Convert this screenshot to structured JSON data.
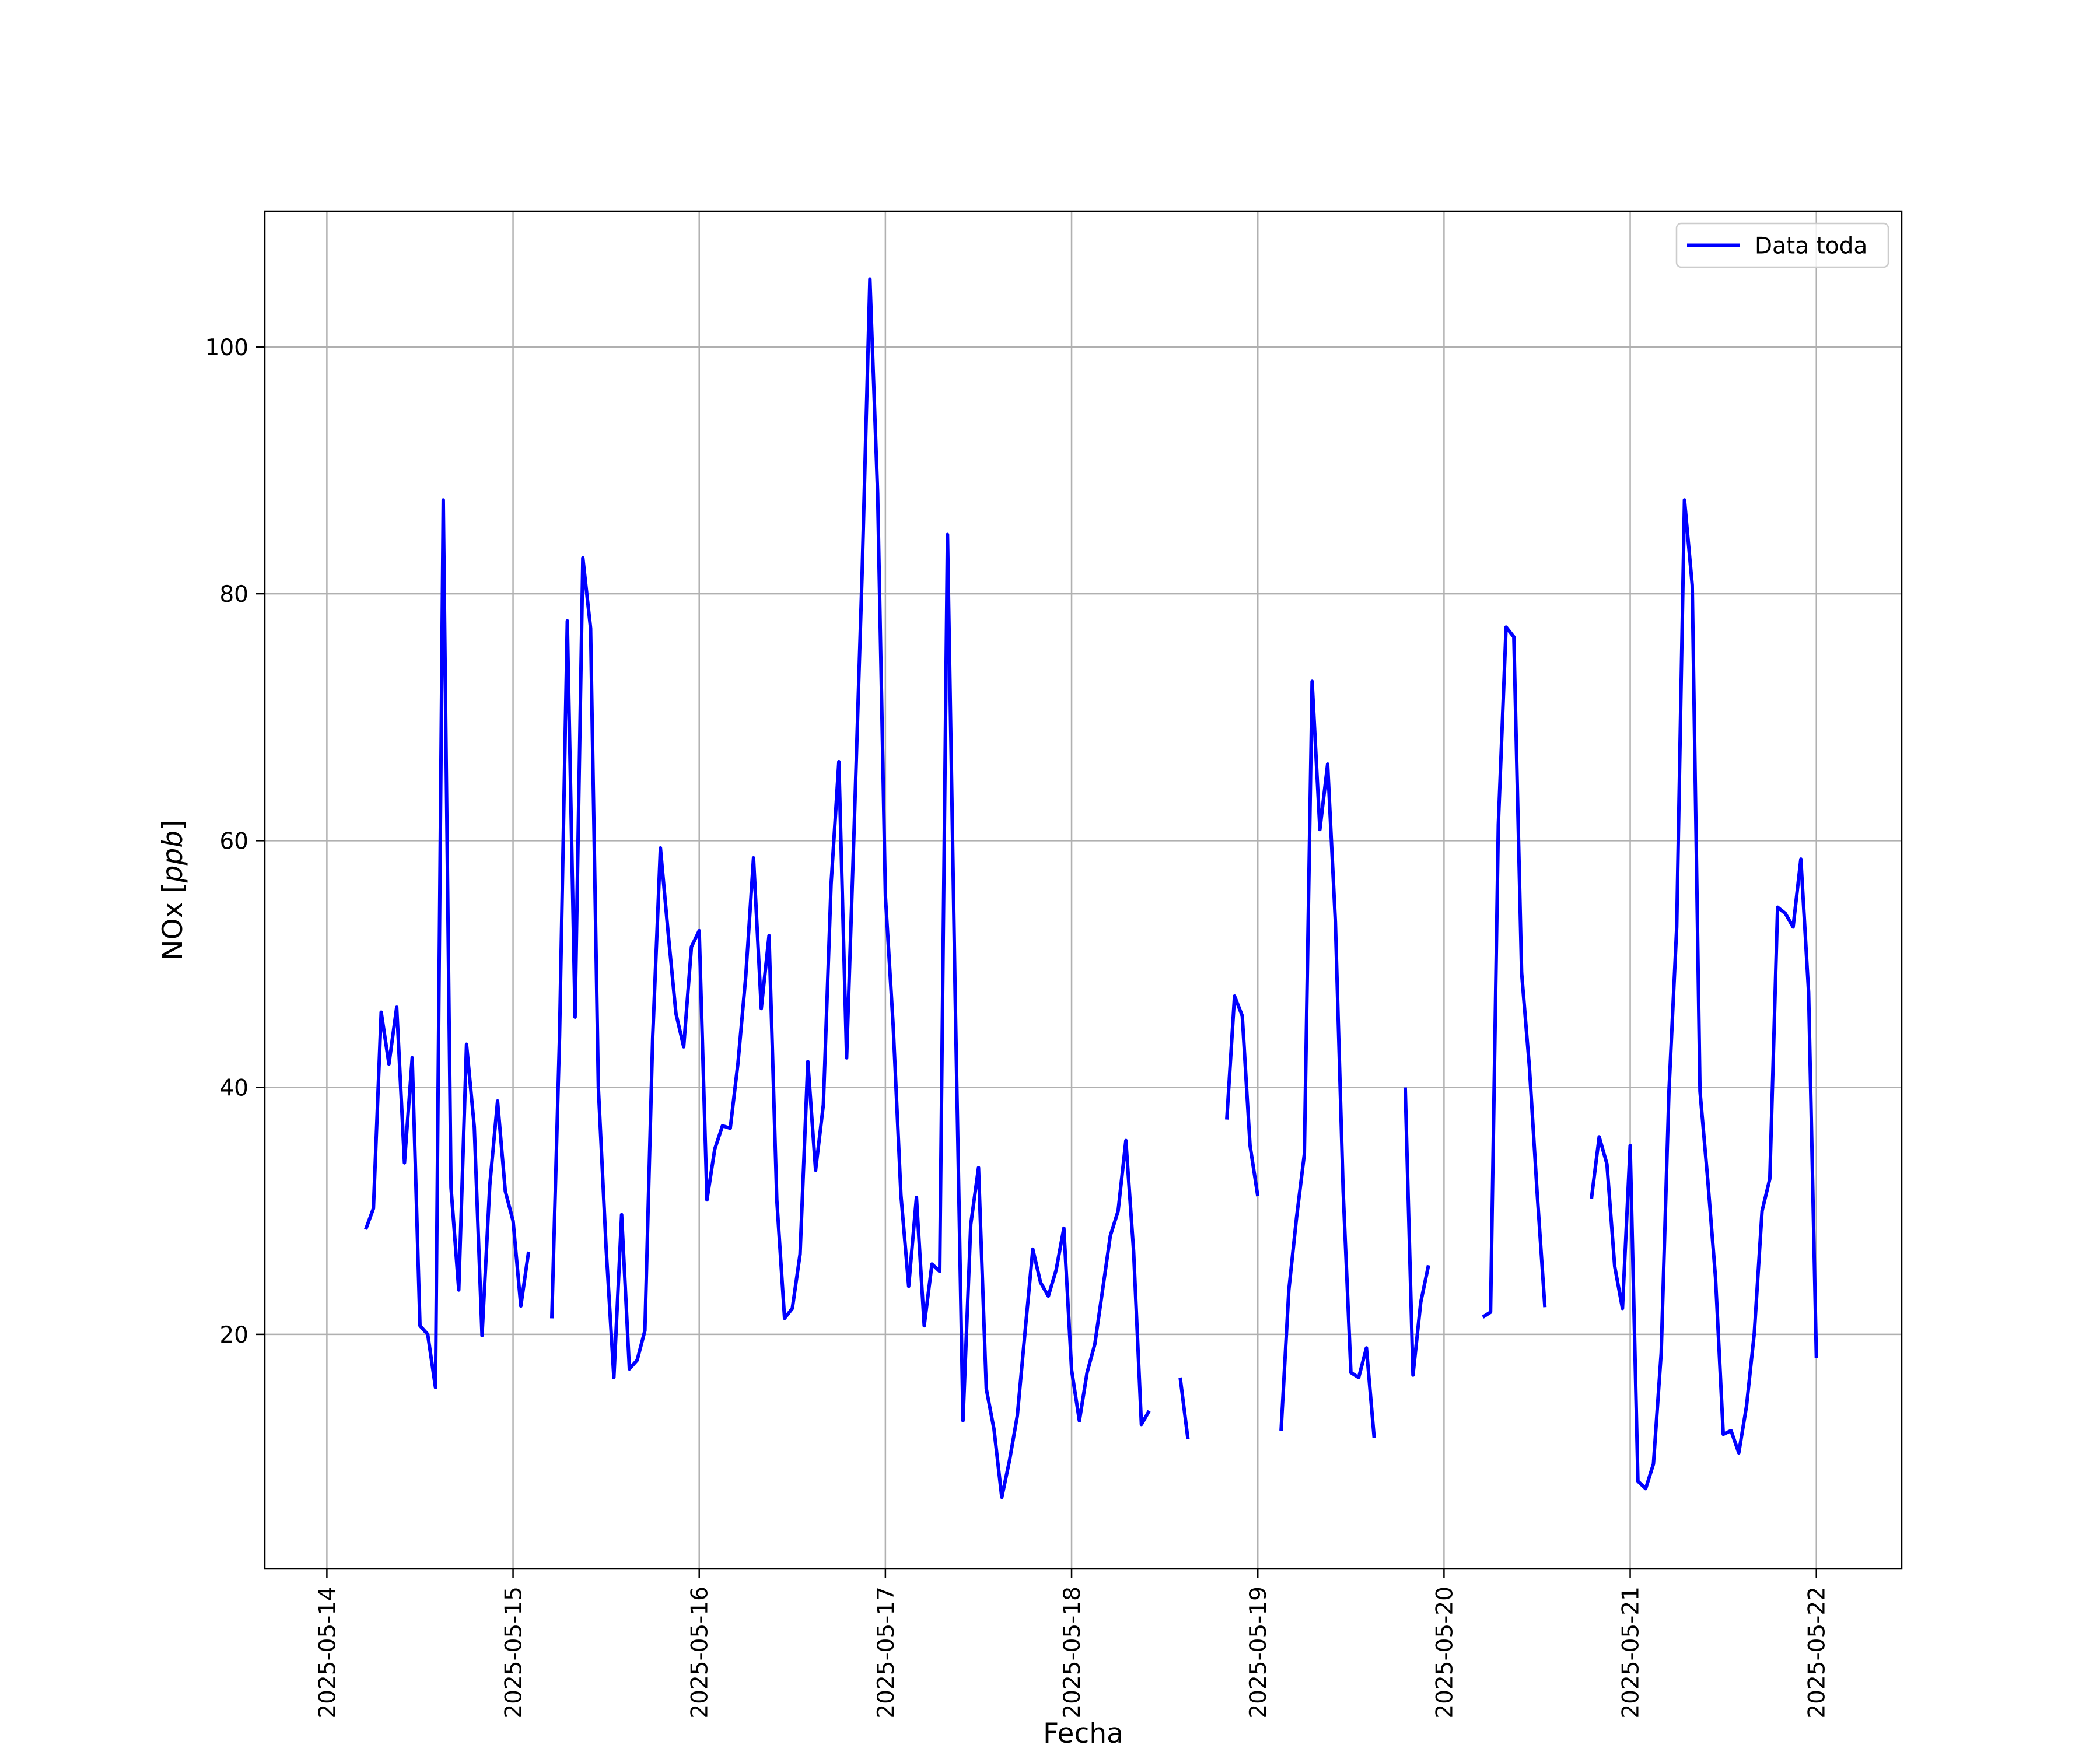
{
  "chart_data": {
    "type": "line",
    "xlabel": "Fecha",
    "ylabel": "NOx",
    "ylabel_unit": "ppb",
    "ylim": [
      1,
      111
    ],
    "xlim": [
      "2025-05-13T16:00",
      "2025-05-22T11:00"
    ],
    "x_ticks": [
      "2025-05-14",
      "2025-05-15",
      "2025-05-16",
      "2025-05-17",
      "2025-05-18",
      "2025-05-19",
      "2025-05-20",
      "2025-05-21",
      "2025-05-22"
    ],
    "y_ticks": [
      20,
      40,
      60,
      80,
      100
    ],
    "grid": true,
    "legend_position": "upper right",
    "series": [
      {
        "name": "Data toda",
        "color": "#0000ff",
        "segments": [
          [
            [
              "2025-05-14T05:00",
              28.5
            ],
            [
              "2025-05-14T06:00",
              30.2
            ],
            [
              "2025-05-14T07:00",
              46.1
            ],
            [
              "2025-05-14T08:00",
              41.9
            ],
            [
              "2025-05-14T09:00",
              46.5
            ],
            [
              "2025-05-14T10:00",
              33.9
            ],
            [
              "2025-05-14T11:00",
              42.4
            ],
            [
              "2025-05-14T12:00",
              20.7
            ],
            [
              "2025-05-14T13:00",
              20.0
            ],
            [
              "2025-05-14T14:00",
              15.7
            ],
            [
              "2025-05-14T15:00",
              87.6
            ],
            [
              "2025-05-14T16:00",
              31.9
            ],
            [
              "2025-05-14T17:00",
              23.6
            ],
            [
              "2025-05-14T18:00",
              43.5
            ],
            [
              "2025-05-14T19:00",
              36.8
            ],
            [
              "2025-05-14T20:00",
              19.9
            ],
            [
              "2025-05-14T21:00",
              32.1
            ],
            [
              "2025-05-14T22:00",
              38.9
            ],
            [
              "2025-05-14T23:00",
              31.6
            ],
            [
              "2025-05-15T00:00",
              29.2
            ],
            [
              "2025-05-15T01:00",
              22.3
            ],
            [
              "2025-05-15T02:00",
              26.7
            ]
          ],
          [
            [
              "2025-05-15T05:00",
              21.3
            ],
            [
              "2025-05-15T06:00",
              44.2
            ],
            [
              "2025-05-15T07:00",
              77.8
            ],
            [
              "2025-05-15T08:00",
              45.7
            ],
            [
              "2025-05-15T09:00",
              82.9
            ],
            [
              "2025-05-15T10:00",
              77.2
            ],
            [
              "2025-05-15T11:00",
              40.0
            ],
            [
              "2025-05-15T12:00",
              27.0
            ],
            [
              "2025-05-15T13:00",
              16.5
            ],
            [
              "2025-05-15T14:00",
              29.7
            ],
            [
              "2025-05-15T15:00",
              17.2
            ],
            [
              "2025-05-15T16:00",
              17.9
            ],
            [
              "2025-05-15T17:00",
              20.3
            ],
            [
              "2025-05-15T18:00",
              44.0
            ],
            [
              "2025-05-15T19:00",
              59.4
            ],
            [
              "2025-05-15T20:00",
              52.5
            ],
            [
              "2025-05-15T21:00",
              46.0
            ],
            [
              "2025-05-15T22:00",
              43.3
            ],
            [
              "2025-05-15T23:00",
              51.4
            ],
            [
              "2025-05-16T00:00",
              52.7
            ],
            [
              "2025-05-16T01:00",
              30.9
            ],
            [
              "2025-05-16T02:00",
              35.0
            ],
            [
              "2025-05-16T03:00",
              36.9
            ],
            [
              "2025-05-16T04:00",
              36.7
            ],
            [
              "2025-05-16T05:00",
              42.0
            ],
            [
              "2025-05-16T06:00",
              49.0
            ],
            [
              "2025-05-16T07:00",
              58.6
            ],
            [
              "2025-05-16T08:00",
              46.4
            ],
            [
              "2025-05-16T09:00",
              52.3
            ],
            [
              "2025-05-16T10:00",
              30.9
            ],
            [
              "2025-05-16T11:00",
              21.3
            ],
            [
              "2025-05-16T12:00",
              22.1
            ],
            [
              "2025-05-16T13:00",
              26.5
            ],
            [
              "2025-05-16T14:00",
              42.1
            ],
            [
              "2025-05-16T15:00",
              33.3
            ],
            [
              "2025-05-16T16:00",
              38.6
            ],
            [
              "2025-05-16T17:00",
              56.5
            ],
            [
              "2025-05-16T18:00",
              66.4
            ],
            [
              "2025-05-16T19:00",
              42.4
            ],
            [
              "2025-05-16T20:00",
              61.6
            ],
            [
              "2025-05-16T21:00",
              81.7
            ],
            [
              "2025-05-16T22:00",
              105.5
            ],
            [
              "2025-05-16T23:00",
              88.1
            ],
            [
              "2025-05-17T00:00",
              55.5
            ],
            [
              "2025-05-17T01:00",
              45.0
            ],
            [
              "2025-05-17T02:00",
              31.3
            ],
            [
              "2025-05-17T03:00",
              23.9
            ],
            [
              "2025-05-17T04:00",
              31.1
            ],
            [
              "2025-05-17T05:00",
              20.7
            ],
            [
              "2025-05-17T06:00",
              25.7
            ],
            [
              "2025-05-17T07:00",
              25.1
            ],
            [
              "2025-05-17T08:00",
              84.8
            ],
            [
              "2025-05-17T09:00",
              47.1
            ],
            [
              "2025-05-17T10:00",
              13.0
            ],
            [
              "2025-05-17T11:00",
              28.9
            ],
            [
              "2025-05-17T12:00",
              33.5
            ],
            [
              "2025-05-17T13:00",
              15.6
            ],
            [
              "2025-05-17T14:00",
              12.3
            ],
            [
              "2025-05-17T15:00",
              6.8
            ],
            [
              "2025-05-17T16:00",
              9.8
            ],
            [
              "2025-05-17T17:00",
              13.4
            ],
            [
              "2025-05-17T18:00",
              20.2
            ],
            [
              "2025-05-17T19:00",
              26.9
            ],
            [
              "2025-05-17T20:00",
              24.2
            ],
            [
              "2025-05-17T21:00",
              23.1
            ],
            [
              "2025-05-17T22:00",
              25.2
            ],
            [
              "2025-05-17T23:00",
              28.6
            ],
            [
              "2025-05-18T00:00",
              17.1
            ],
            [
              "2025-05-18T01:00",
              13.0
            ],
            [
              "2025-05-18T02:00",
              16.9
            ],
            [
              "2025-05-18T03:00",
              19.2
            ],
            [
              "2025-05-18T04:00",
              23.6
            ],
            [
              "2025-05-18T05:00",
              28.0
            ],
            [
              "2025-05-18T06:00",
              30.0
            ],
            [
              "2025-05-18T07:00",
              35.7
            ],
            [
              "2025-05-18T08:00",
              26.7
            ],
            [
              "2025-05-18T09:00",
              12.7
            ],
            [
              "2025-05-18T10:00",
              13.8
            ]
          ],
          [
            [
              "2025-05-18T14:00",
              16.5
            ],
            [
              "2025-05-18T15:00",
              11.5
            ]
          ],
          [
            [
              "2025-05-18T20:00",
              37.4
            ],
            [
              "2025-05-18T21:00",
              47.4
            ],
            [
              "2025-05-18T22:00",
              45.8
            ],
            [
              "2025-05-18T23:00",
              35.3
            ],
            [
              "2025-05-19T00:00",
              31.2
            ]
          ],
          [
            [
              "2025-05-19T03:00",
              12.2
            ],
            [
              "2025-05-19T04:00",
              23.6
            ],
            [
              "2025-05-19T05:00",
              29.5
            ],
            [
              "2025-05-19T06:00",
              34.6
            ],
            [
              "2025-05-19T07:00",
              72.9
            ],
            [
              "2025-05-19T08:00",
              60.9
            ],
            [
              "2025-05-19T09:00",
              66.2
            ],
            [
              "2025-05-19T10:00",
              53.4
            ],
            [
              "2025-05-19T11:00",
              31.6
            ],
            [
              "2025-05-19T12:00",
              16.9
            ],
            [
              "2025-05-19T13:00",
              16.5
            ],
            [
              "2025-05-19T14:00",
              18.9
            ],
            [
              "2025-05-19T15:00",
              11.6
            ]
          ],
          [
            [
              "2025-05-19T19:00",
              40.0
            ],
            [
              "2025-05-19T20:00",
              16.7
            ],
            [
              "2025-05-19T21:00",
              22.6
            ],
            [
              "2025-05-19T22:00",
              25.6
            ]
          ],
          [
            [
              "2025-05-20T05:00",
              21.4
            ],
            [
              "2025-05-20T06:00",
              21.8
            ],
            [
              "2025-05-20T07:00",
              61.3
            ],
            [
              "2025-05-20T08:00",
              77.3
            ],
            [
              "2025-05-20T09:00",
              76.5
            ],
            [
              "2025-05-20T10:00",
              49.3
            ],
            [
              "2025-05-20T11:00",
              41.7
            ],
            [
              "2025-05-20T12:00",
              31.5
            ],
            [
              "2025-05-20T13:00",
              22.2
            ]
          ],
          [
            [
              "2025-05-20T19:00",
              31.0
            ],
            [
              "2025-05-20T20:00",
              36.0
            ],
            [
              "2025-05-20T21:00",
              33.8
            ],
            [
              "2025-05-20T22:00",
              25.5
            ],
            [
              "2025-05-20T23:00",
              22.1
            ],
            [
              "2025-05-21T00:00",
              35.3
            ],
            [
              "2025-05-21T01:00",
              8.1
            ],
            [
              "2025-05-21T02:00",
              7.5
            ],
            [
              "2025-05-21T03:00",
              9.5
            ],
            [
              "2025-05-21T04:00",
              18.5
            ],
            [
              "2025-05-21T05:00",
              39.7
            ],
            [
              "2025-05-21T06:00",
              53.0
            ],
            [
              "2025-05-21T07:00",
              87.6
            ],
            [
              "2025-05-21T08:00",
              80.7
            ],
            [
              "2025-05-21T09:00",
              39.7
            ],
            [
              "2025-05-21T10:00",
              32.5
            ],
            [
              "2025-05-21T11:00",
              24.6
            ],
            [
              "2025-05-21T12:00",
              11.9
            ],
            [
              "2025-05-21T13:00",
              12.2
            ],
            [
              "2025-05-21T14:00",
              10.4
            ],
            [
              "2025-05-21T15:00",
              14.2
            ],
            [
              "2025-05-21T16:00",
              20.1
            ],
            [
              "2025-05-21T17:00",
              30.0
            ],
            [
              "2025-05-21T18:00",
              32.6
            ],
            [
              "2025-05-21T19:00",
              54.6
            ],
            [
              "2025-05-21T20:00",
              54.1
            ],
            [
              "2025-05-21T21:00",
              53.0
            ],
            [
              "2025-05-21T22:00",
              58.5
            ],
            [
              "2025-05-21T23:00",
              47.7
            ],
            [
              "2025-05-22T00:00",
              18.1
            ]
          ]
        ]
      }
    ]
  }
}
